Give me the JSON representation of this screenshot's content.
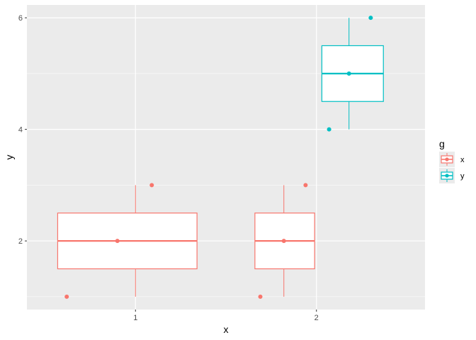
{
  "chart_data": {
    "type": "box",
    "xlabel": "x",
    "ylabel": "y",
    "categories": [
      "1",
      "2"
    ],
    "ylim": [
      0.77,
      6.23
    ],
    "yticks": [
      2,
      4,
      6
    ],
    "yminor": [
      1,
      3,
      5
    ],
    "grid": true,
    "legend": {
      "title": "g",
      "position": "right"
    },
    "colors": {
      "x": "#F8766D",
      "y": "#00BFC4",
      "panel": "#EBEBEB",
      "grid": "#FFFFFF",
      "box_fill": "#FFFFFF"
    },
    "boxes": [
      {
        "group": "x",
        "x_center": 0.9,
        "x_range": [
          0.57,
          1.34
        ],
        "whisker_x": 1.0,
        "min": 1,
        "q1": 1.5,
        "median": 2,
        "q3": 2.5,
        "max": 3,
        "mean": 2
      },
      {
        "group": "x",
        "x_center": 1.82,
        "x_range": [
          1.66,
          1.99
        ],
        "whisker_x": 1.82,
        "min": 1,
        "q1": 1.5,
        "median": 2,
        "q3": 2.5,
        "max": 3,
        "mean": 2
      },
      {
        "group": "y",
        "x_center": 2.18,
        "x_range": [
          2.03,
          2.37
        ],
        "whisker_x": 2.18,
        "min": 4,
        "q1": 4.5,
        "median": 5,
        "q3": 5.5,
        "max": 6,
        "mean": 5
      }
    ],
    "points": [
      {
        "group": "x",
        "x": 0.62,
        "y": 1
      },
      {
        "group": "x",
        "x": 1.09,
        "y": 3
      },
      {
        "group": "x",
        "x": 1.69,
        "y": 1
      },
      {
        "group": "x",
        "x": 1.94,
        "y": 3
      },
      {
        "group": "y",
        "x": 2.07,
        "y": 4
      },
      {
        "group": "y",
        "x": 2.3,
        "y": 6
      }
    ],
    "series": [
      {
        "name": "x",
        "color": "#F8766D"
      },
      {
        "name": "y",
        "color": "#00BFC4"
      }
    ]
  }
}
